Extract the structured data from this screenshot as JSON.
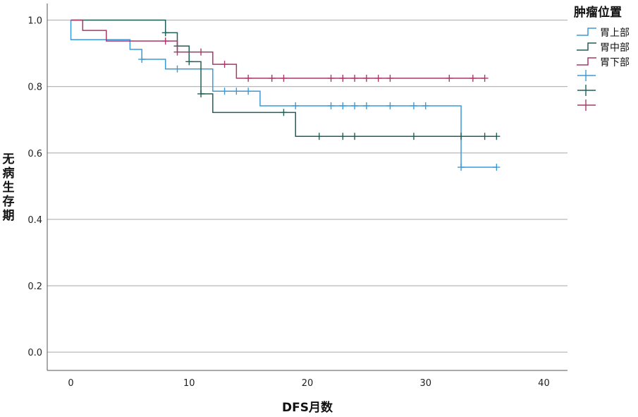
{
  "chart_data": {
    "type": "line",
    "subtype": "kaplan-meier step survival curves with censor marks",
    "xlabel": "DFS月数",
    "ylabel": "无病生存期",
    "xlim": [
      -2,
      42
    ],
    "ylim": [
      -0.055,
      1.05
    ],
    "xticks": [
      0,
      10,
      20,
      30,
      40
    ],
    "yticks": [
      0.0,
      0.2,
      0.4,
      0.6,
      0.8,
      1.0
    ],
    "ytick_labels": [
      "0.0",
      "0.2",
      "0.4",
      "0.6",
      "0.8",
      "1.0"
    ],
    "grid": "horizontal",
    "legend": {
      "title": "肿瘤位置",
      "position": "right",
      "entries": [
        "胃上部",
        "胃中部",
        "胃下部",
        "",
        "",
        ""
      ]
    },
    "series": [
      {
        "name": "胃上部",
        "color": "#3a9ad9",
        "steps": [
          [
            0,
            1.0
          ],
          [
            0,
            0.941
          ],
          [
            5,
            0.912
          ],
          [
            6,
            0.882
          ],
          [
            8,
            0.853
          ],
          [
            12,
            0.786
          ],
          [
            16,
            0.742
          ],
          [
            33,
            0.557
          ],
          [
            36,
            0.557
          ]
        ],
        "censored": [
          [
            6,
            0.882
          ],
          [
            9,
            0.853
          ],
          [
            13,
            0.786
          ],
          [
            14,
            0.786
          ],
          [
            15,
            0.786
          ],
          [
            19,
            0.742
          ],
          [
            22,
            0.742
          ],
          [
            23,
            0.742
          ],
          [
            24,
            0.742
          ],
          [
            25,
            0.742
          ],
          [
            27,
            0.742
          ],
          [
            29,
            0.742
          ],
          [
            30,
            0.742
          ],
          [
            33,
            0.557
          ],
          [
            36,
            0.557
          ]
        ]
      },
      {
        "name": "胃中部",
        "color": "#1f5f57",
        "steps": [
          [
            0,
            1.0
          ],
          [
            8,
            0.962
          ],
          [
            9,
            0.922
          ],
          [
            10,
            0.875
          ],
          [
            11,
            0.778
          ],
          [
            12,
            0.722
          ],
          [
            19,
            0.65
          ],
          [
            36,
            0.65
          ]
        ],
        "censored": [
          [
            8,
            0.962
          ],
          [
            9,
            0.922
          ],
          [
            10,
            0.875
          ],
          [
            11,
            0.778
          ],
          [
            18,
            0.722
          ],
          [
            21,
            0.65
          ],
          [
            23,
            0.65
          ],
          [
            24,
            0.65
          ],
          [
            29,
            0.65
          ],
          [
            33,
            0.65
          ],
          [
            35,
            0.65
          ],
          [
            36,
            0.65
          ]
        ]
      },
      {
        "name": "胃下部",
        "color": "#a8386a",
        "steps": [
          [
            0,
            1.0
          ],
          [
            1,
            0.969
          ],
          [
            3,
            0.937
          ],
          [
            9,
            0.904
          ],
          [
            12,
            0.867
          ],
          [
            14,
            0.825
          ],
          [
            35,
            0.825
          ]
        ],
        "censored": [
          [
            8,
            0.937
          ],
          [
            9,
            0.904
          ],
          [
            11,
            0.904
          ],
          [
            13,
            0.867
          ],
          [
            15,
            0.825
          ],
          [
            17,
            0.825
          ],
          [
            18,
            0.825
          ],
          [
            22,
            0.825
          ],
          [
            23,
            0.825
          ],
          [
            24,
            0.825
          ],
          [
            25,
            0.825
          ],
          [
            26,
            0.825
          ],
          [
            27,
            0.825
          ],
          [
            32,
            0.825
          ],
          [
            34,
            0.825
          ],
          [
            35,
            0.825
          ]
        ]
      }
    ]
  }
}
